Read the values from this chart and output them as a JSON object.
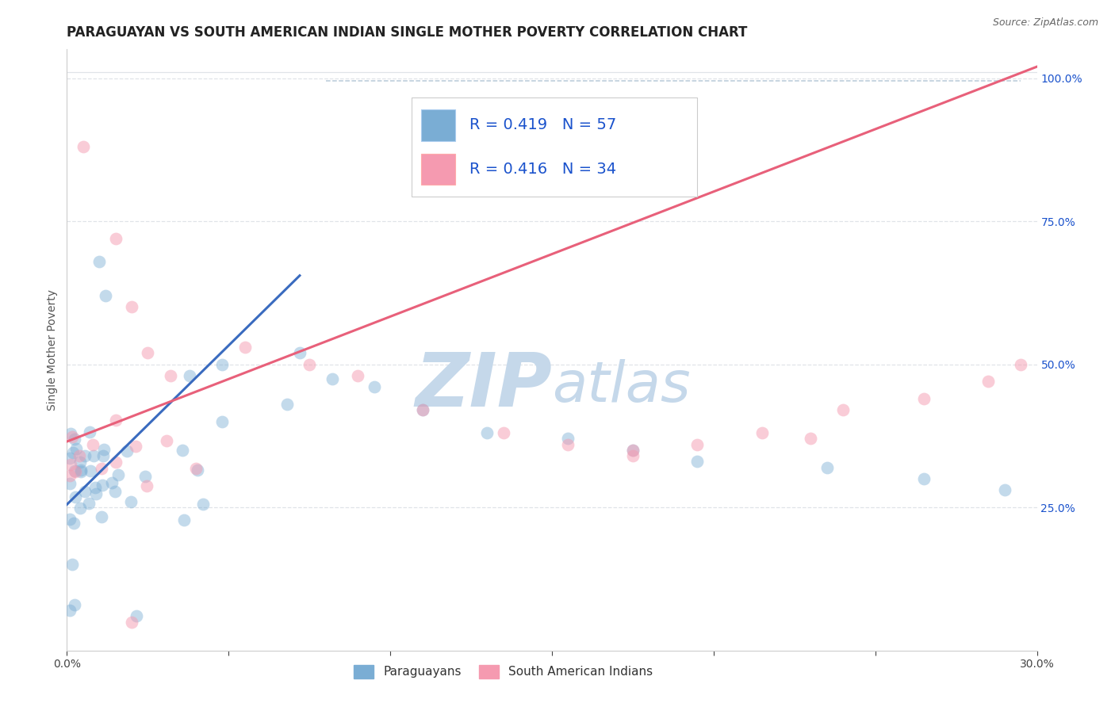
{
  "title": "PARAGUAYAN VS SOUTH AMERICAN INDIAN SINGLE MOTHER POVERTY CORRELATION CHART",
  "source_text": "Source: ZipAtlas.com",
  "ylabel": "Single Mother Poverty",
  "xlim": [
    0.0,
    0.3
  ],
  "ylim": [
    0.0,
    1.05
  ],
  "xtick_positions": [
    0.0,
    0.05,
    0.1,
    0.15,
    0.2,
    0.25,
    0.3
  ],
  "xticklabels": [
    "0.0%",
    "",
    "",
    "",
    "",
    "",
    "30.0%"
  ],
  "yticks_right": [
    0.25,
    0.5,
    0.75,
    1.0
  ],
  "ytick_right_labels": [
    "25.0%",
    "50.0%",
    "75.0%",
    "100.0%"
  ],
  "paraguayan_color": "#7aadd4",
  "sai_color": "#f59ab0",
  "paraguayan_line_color": "#3a6bbf",
  "sai_line_color": "#e8607a",
  "diag_line_color": "#a0b8cc",
  "paraguayan_R": 0.419,
  "paraguayan_N": 57,
  "sai_R": 0.416,
  "sai_N": 34,
  "legend_color": "#1a52cc",
  "watermark_zip_color": "#c5d8ea",
  "watermark_atlas_color": "#c5d8ea",
  "background_color": "#ffffff",
  "grid_color": "#e0e4e8",
  "title_fontsize": 12,
  "axis_label_fontsize": 10,
  "tick_fontsize": 10,
  "legend_fontsize": 14,
  "blue_line_x0": 0.0,
  "blue_line_y0": 0.255,
  "blue_line_x1": 0.072,
  "blue_line_y1": 0.655,
  "pink_line_x0": 0.0,
  "pink_line_y0": 0.365,
  "pink_line_x1": 0.3,
  "pink_line_y1": 1.02,
  "diag_line_x0": 0.08,
  "diag_line_y0": 0.995,
  "diag_line_x1": 0.295,
  "diag_line_y1": 0.995
}
